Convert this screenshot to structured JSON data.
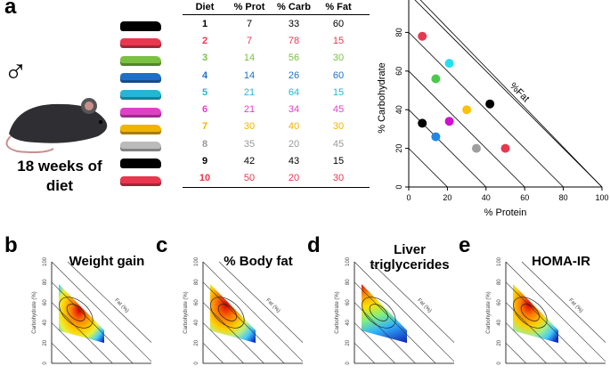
{
  "panels": {
    "a": "a",
    "b": "b",
    "c": "c",
    "d": "d",
    "e": "e"
  },
  "left": {
    "sex_symbol": "♂",
    "duration": "18 weeks of diet"
  },
  "table": {
    "headers": [
      "Diet",
      "% Prot",
      "% Carb",
      "% Fat"
    ],
    "rows": [
      {
        "diet": "1",
        "prot": "7",
        "carb": "33",
        "fat": "60",
        "color": "#000000"
      },
      {
        "diet": "2",
        "prot": "7",
        "carb": "78",
        "fat": "15",
        "color": "#e8384f"
      },
      {
        "diet": "3",
        "prot": "14",
        "carb": "56",
        "fat": "30",
        "color": "#7ac142"
      },
      {
        "diet": "4",
        "prot": "14",
        "carb": "26",
        "fat": "60",
        "color": "#1f6fc5"
      },
      {
        "diet": "5",
        "prot": "21",
        "carb": "64",
        "fat": "15",
        "color": "#27b5d6"
      },
      {
        "diet": "6",
        "prot": "21",
        "carb": "34",
        "fat": "45",
        "color": "#e040c8"
      },
      {
        "diet": "7",
        "prot": "30",
        "carb": "40",
        "fat": "30",
        "color": "#f0b400"
      },
      {
        "diet": "8",
        "prot": "35",
        "carb": "20",
        "fat": "45",
        "color": "#999999"
      },
      {
        "diet": "9",
        "prot": "42",
        "carb": "43",
        "fat": "15",
        "color": "#000000"
      },
      {
        "diet": "10",
        "prot": "50",
        "carb": "20",
        "fat": "30",
        "color": "#e8384f"
      }
    ]
  },
  "chart_data": {
    "type": "scatter",
    "xlabel": "% Protein",
    "ylabel": "% Carbohydrate",
    "diagonal_label": "%Fat",
    "xlim": [
      0,
      100
    ],
    "ylim": [
      0,
      100
    ],
    "xticks": [
      "0",
      "20",
      "40",
      "60",
      "80",
      "100"
    ],
    "yticks": [
      "0",
      "20",
      "40",
      "60",
      "80"
    ],
    "points": [
      {
        "x": 7,
        "y": 33,
        "color": "#000000"
      },
      {
        "x": 7,
        "y": 78,
        "color": "#e8384f"
      },
      {
        "x": 14,
        "y": 56,
        "color": "#4cc94c"
      },
      {
        "x": 14,
        "y": 26,
        "color": "#1e88e5"
      },
      {
        "x": 21,
        "y": 64,
        "color": "#22e0f0"
      },
      {
        "x": 21,
        "y": 34,
        "color": "#d010d0"
      },
      {
        "x": 30,
        "y": 40,
        "color": "#ffc107"
      },
      {
        "x": 35,
        "y": 20,
        "color": "#9e9e9e"
      },
      {
        "x": 42,
        "y": 43,
        "color": "#000000"
      },
      {
        "x": 50,
        "y": 20,
        "color": "#e8384f"
      }
    ]
  },
  "surfaces": [
    {
      "title": "Weight gain",
      "ylabel": "Carbohydrate (%)",
      "diag": "Fat (%)"
    },
    {
      "title": "% Body fat",
      "ylabel": "Carbohydrate (%)",
      "diag": "Fat (%)"
    },
    {
      "title": "Liver triglycerides",
      "ylabel": "Carbohydrate (%)",
      "diag": "Fat (%)"
    },
    {
      "title": "HOMA-IR",
      "ylabel": "Carbohydrate (%)",
      "diag": "Fat (%)"
    }
  ],
  "surface_yticks": [
    "0",
    "20",
    "40",
    "60",
    "80",
    "100"
  ]
}
